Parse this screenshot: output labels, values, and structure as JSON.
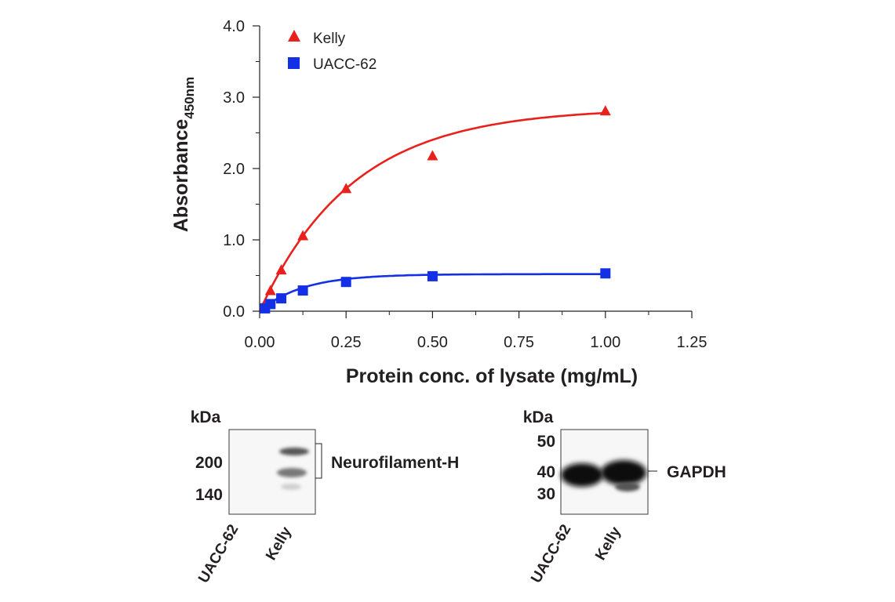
{
  "chart_data": {
    "type": "scatter",
    "xlabel": "Protein conc. of lysate (mg/mL)",
    "ylabel": "Absorbance",
    "ylabel_sub": "450nm",
    "xlim": [
      0,
      1.25
    ],
    "ylim": [
      0,
      4.0
    ],
    "x_ticks": [
      "0.00",
      "0.25",
      "0.50",
      "0.75",
      "1.00",
      "1.25"
    ],
    "y_ticks": [
      "0.0",
      "1.0",
      "2.0",
      "3.0",
      "4.0"
    ],
    "grid": false,
    "legend_position": "top-left",
    "series": [
      {
        "name": "Kelly",
        "color": "#e8211d",
        "marker": "triangle",
        "x": [
          0.0156,
          0.03125,
          0.0625,
          0.125,
          0.25,
          0.5,
          1.0
        ],
        "y": [
          0.1,
          0.28,
          0.57,
          1.05,
          1.71,
          2.17,
          2.8
        ],
        "fit_curve": {
          "ymax": 2.85,
          "k": 3.7
        }
      },
      {
        "name": "UACC-62",
        "color": "#1430e6",
        "marker": "square",
        "x": [
          0.0156,
          0.03125,
          0.0625,
          0.125,
          0.25,
          0.5,
          1.0
        ],
        "y": [
          0.04,
          0.1,
          0.18,
          0.29,
          0.41,
          0.49,
          0.53
        ],
        "fit_curve": {
          "ymax": 0.52,
          "k": 8.0
        }
      }
    ]
  },
  "blots": {
    "left": {
      "unit": "kDa",
      "markers": [
        "200",
        "140"
      ],
      "band_label": "Neurofilament-H",
      "lanes": [
        "UACC-62",
        "Kelly"
      ]
    },
    "right": {
      "unit": "kDa",
      "markers": [
        "50",
        "40",
        "30"
      ],
      "band_label": "GAPDH",
      "lanes": [
        "UACC-62",
        "Kelly"
      ]
    }
  }
}
